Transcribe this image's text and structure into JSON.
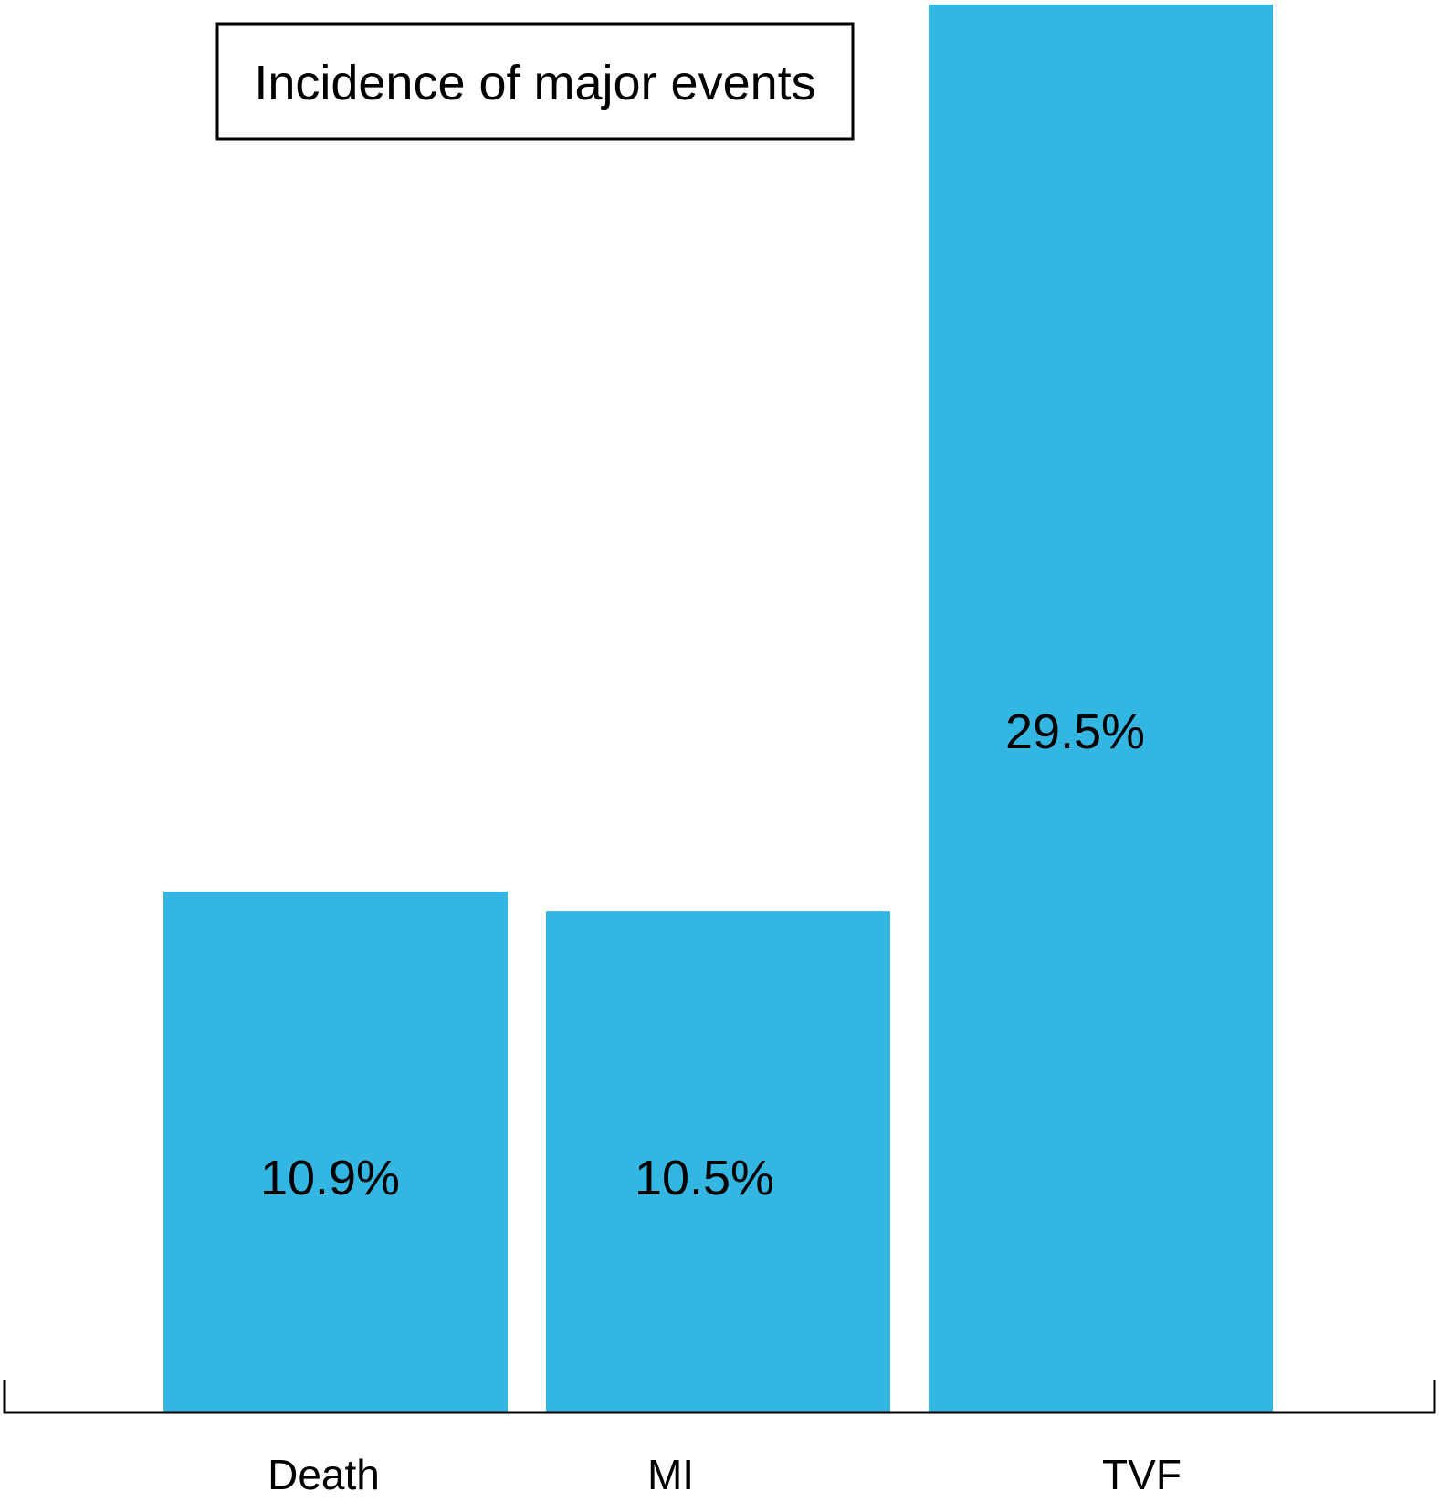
{
  "chart_data": {
    "type": "bar",
    "title": "Incidence of major events",
    "categories": [
      "Death",
      "MI",
      "TVF"
    ],
    "values": [
      10.9,
      10.5,
      29.5
    ],
    "value_labels": [
      "10.9%",
      "10.5%",
      "29.5%"
    ],
    "xlabel": "",
    "ylabel": "",
    "ylim": [
      0,
      29.5
    ],
    "grid": false,
    "legend": "none",
    "bar_color": "#34B6E3"
  }
}
